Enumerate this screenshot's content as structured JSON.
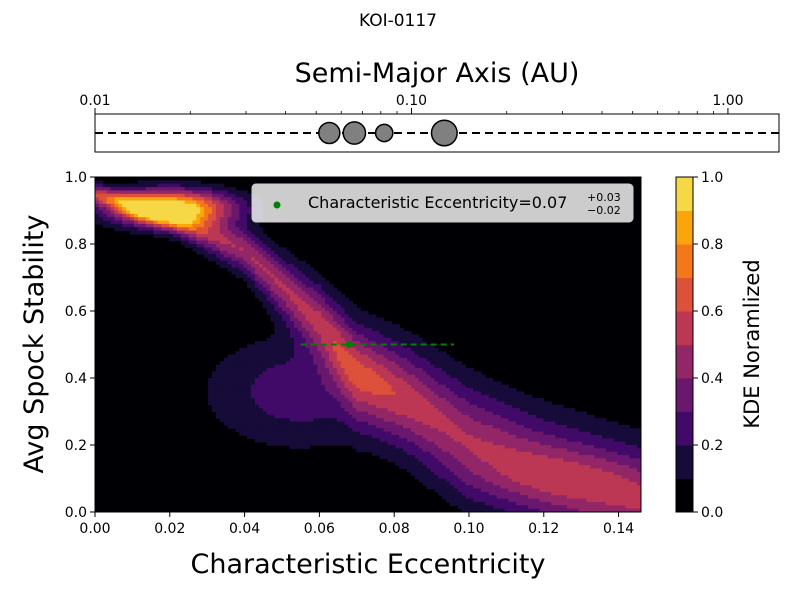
{
  "figure": {
    "suptitle": "KOI-0117"
  },
  "chart_data": [
    {
      "type": "scatter",
      "panel": "orbit-strip",
      "title": "Semi-Major Axis (AU)",
      "xscale": "log",
      "xlim": [
        0.01,
        1.45
      ],
      "xticks": [
        0.01,
        0.1,
        1.0
      ],
      "xtick_labels": [
        "0.01",
        "0.10",
        "1.00"
      ],
      "planets": [
        {
          "a": 0.055,
          "size": 1.0
        },
        {
          "a": 0.066,
          "size": 1.06
        },
        {
          "a": 0.082,
          "size": 0.82
        },
        {
          "a": 0.127,
          "size": 1.22
        }
      ],
      "colors": {
        "planet_fill": "#808080",
        "planet_edge": "#000000",
        "line": "#000000"
      }
    },
    {
      "type": "heatmap",
      "panel": "kde",
      "xlabel": "Characteristic Eccentricity",
      "ylabel": "Avg Spock Stability",
      "xlim": [
        0.0,
        0.146
      ],
      "ylim": [
        0.0,
        1.0
      ],
      "xticks": [
        0.0,
        0.02,
        0.04,
        0.06,
        0.08,
        0.1,
        0.12,
        0.14
      ],
      "xtick_labels": [
        "0.00",
        "0.02",
        "0.04",
        "0.06",
        "0.08",
        "0.10",
        "0.12",
        "0.14"
      ],
      "yticks": [
        0.0,
        0.2,
        0.4,
        0.6,
        0.8,
        1.0
      ],
      "ytick_labels": [
        "0.0",
        "0.2",
        "0.4",
        "0.6",
        "0.8",
        "1.0"
      ],
      "colorbar": {
        "label": "KDE Noramlized",
        "ticks": [
          0.0,
          0.2,
          0.4,
          0.6,
          0.8,
          1.0
        ],
        "tick_labels": [
          "0.0",
          "0.2",
          "0.4",
          "0.6",
          "0.8",
          "1.0"
        ],
        "levels": [
          0.0,
          0.1,
          0.2,
          0.3,
          0.4,
          0.5,
          0.6,
          0.7,
          0.8,
          0.9,
          1.0
        ],
        "colors": [
          "#000004",
          "#160b39",
          "#420a68",
          "#6a176e",
          "#932667",
          "#bc3754",
          "#dd513a",
          "#f37819",
          "#fca50a",
          "#f6d746",
          "#fcffa4"
        ]
      },
      "ridge": [
        {
          "x": 0.0,
          "y": 0.95,
          "w": 0.006
        },
        {
          "x": 0.02,
          "y": 0.88,
          "w": 0.009
        },
        {
          "x": 0.04,
          "y": 0.78,
          "w": 0.015
        },
        {
          "x": 0.06,
          "y": 0.57,
          "w": 0.024
        },
        {
          "x": 0.07,
          "y": 0.42,
          "w": 0.03
        },
        {
          "x": 0.085,
          "y": 0.32,
          "w": 0.033
        },
        {
          "x": 0.1,
          "y": 0.21,
          "w": 0.036
        },
        {
          "x": 0.12,
          "y": 0.12,
          "w": 0.036
        },
        {
          "x": 0.146,
          "y": 0.03,
          "w": 0.036
        }
      ],
      "density_peaks": [
        {
          "x": 0.0205,
          "y": 0.908,
          "amp": 0.96,
          "sx": 0.0115,
          "sy": 0.038
        },
        {
          "x": 0.055,
          "y": 0.36,
          "amp": 0.26,
          "sx": 0.018,
          "sy": 0.12
        },
        {
          "x": 0.125,
          "y": 0.1,
          "amp": 0.1,
          "sx": 0.02,
          "sy": 0.06
        }
      ],
      "ridge_base": 0.5,
      "ridge_decay": 0.55,
      "estimate": {
        "value": 0.068,
        "stability": 0.5,
        "lower": 0.055,
        "upper": 0.096,
        "color": "#008000"
      },
      "legend": {
        "placement": "top-right",
        "label_prefix": "Characteristic Eccentricity=",
        "value_text": "0.07",
        "plus_text": "+0.03",
        "minus_text": "−0.02"
      }
    }
  ]
}
